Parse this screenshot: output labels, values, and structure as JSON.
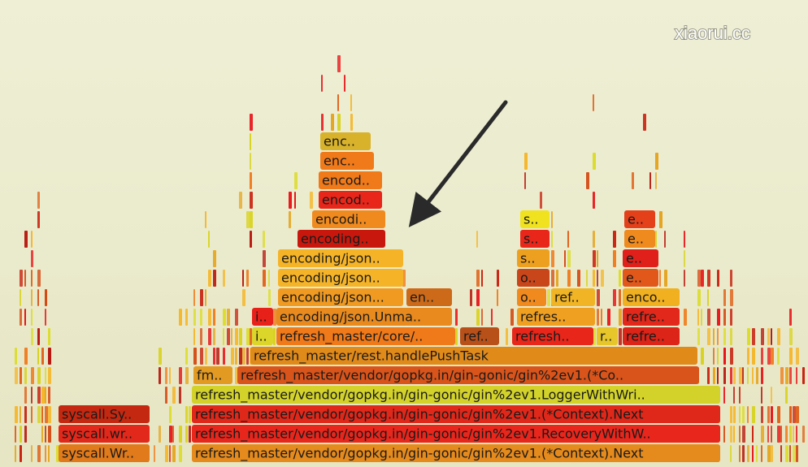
{
  "watermark": "xiaorui.cc",
  "frames": [
    {
      "label": "syscall.Wr.."
    },
    {
      "label": "refresh_master/vendor/gopkg.in/gin-gonic/gin%2ev1.(*Context).Next"
    },
    {
      "label": "syscall.wr.."
    },
    {
      "label": "refresh_master/vendor/gopkg.in/gin-gonic/gin%2ev1.RecoveryWithW.."
    },
    {
      "label": "syscall.Sy.."
    },
    {
      "label": "refresh_master/vendor/gopkg.in/gin-gonic/gin%2ev1.(*Context).Next"
    },
    {
      "label": "refresh_master/vendor/gopkg.in/gin-gonic/gin%2ev1.LoggerWithWri.."
    },
    {
      "label": "fm.."
    },
    {
      "label": "refresh_master/vendor/gopkg.in/gin-gonic/gin%2ev1.(*Co.."
    },
    {
      "label": "refresh_master/rest.handlePushTask"
    },
    {
      "label": "i.."
    },
    {
      "label": "refresh_master/core/.."
    },
    {
      "label": "ref.."
    },
    {
      "label": "refresh.."
    },
    {
      "label": "r.."
    },
    {
      "label": "refre.."
    },
    {
      "label": "i.."
    },
    {
      "label": "encoding/json.Unma.."
    },
    {
      "label": "refres.."
    },
    {
      "label": "refre.."
    },
    {
      "label": "encoding/json..."
    },
    {
      "label": "en.."
    },
    {
      "label": "o.."
    },
    {
      "label": "ref.."
    },
    {
      "label": "enco.."
    },
    {
      "label": "encoding/json.."
    },
    {
      "label": "o.."
    },
    {
      "label": "e.."
    },
    {
      "label": "encoding/json.."
    },
    {
      "label": "s.."
    },
    {
      "label": "e.."
    },
    {
      "label": "encoding.."
    },
    {
      "label": "s.."
    },
    {
      "label": "e.."
    },
    {
      "label": "encodi.."
    },
    {
      "label": "s.."
    },
    {
      "label": "e.."
    },
    {
      "label": "encod.."
    },
    {
      "label": "encod.."
    },
    {
      "label": "enc.."
    },
    {
      "label": "enc.."
    }
  ]
}
